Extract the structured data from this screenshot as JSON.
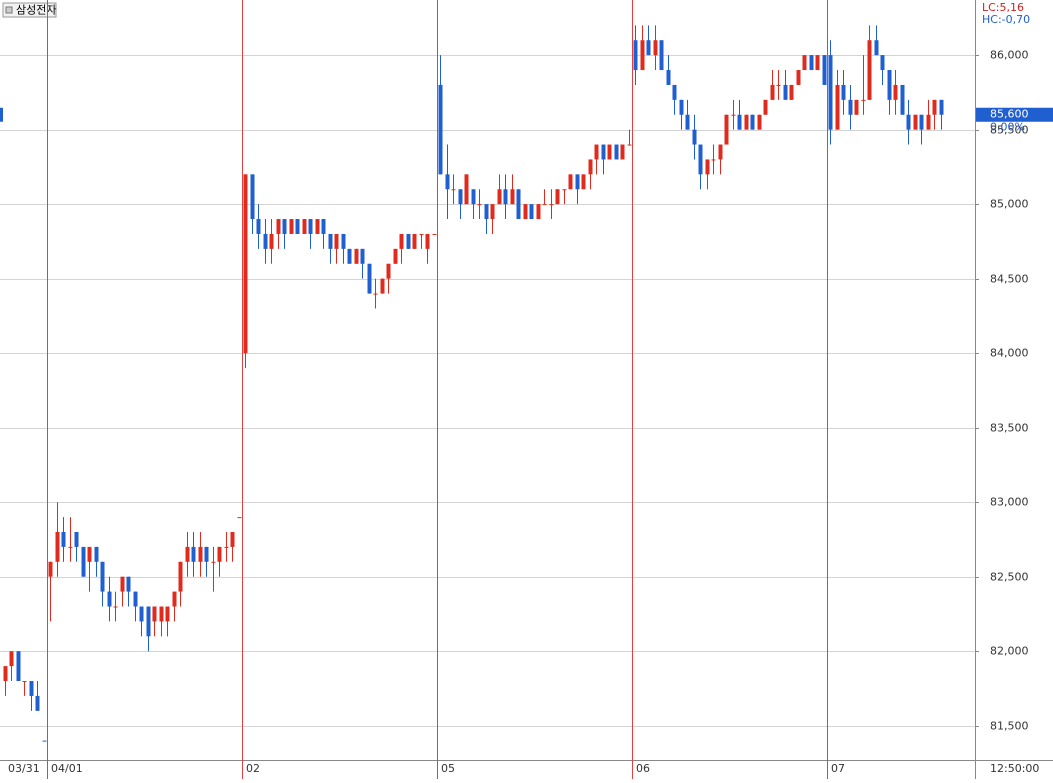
{
  "chart_data": {
    "type": "candlestick",
    "title": "삼성전자",
    "up_color": "#e02a1e",
    "down_color": "#1f5fd0",
    "separator_color": "#e04040",
    "ylim": [
      81270,
      86370
    ],
    "yticks": [
      {
        "value": 81500,
        "label": "81,500"
      },
      {
        "value": 82000,
        "label": "82,000"
      },
      {
        "value": 82500,
        "label": "82,500"
      },
      {
        "value": 83000,
        "label": "83,000"
      },
      {
        "value": 83500,
        "label": "83,500"
      },
      {
        "value": 84000,
        "label": "84,000"
      },
      {
        "value": 84500,
        "label": "84,500"
      },
      {
        "value": 85000,
        "label": "85,000"
      },
      {
        "value": 85500,
        "label": "85,500"
      },
      {
        "value": 86000,
        "label": "86,000"
      }
    ],
    "grid": true,
    "lc_label": "LC:5,16",
    "hc_label": "HC:-0,70",
    "price_label": {
      "value": 85600,
      "label": "85,600"
    },
    "change_label": "0.00%",
    "time_label": "12:50:00",
    "days": [
      {
        "label": "03/31",
        "candles": [
          [
            81800,
            81900,
            81700,
            81900
          ],
          [
            81900,
            82000,
            81800,
            82000
          ],
          [
            82000,
            82000,
            81800,
            81800
          ],
          [
            81800,
            81800,
            81700,
            81800
          ],
          [
            81800,
            81800,
            81600,
            81700
          ],
          [
            81700,
            81800,
            81600,
            81600
          ],
          [
            81400,
            81400,
            81400,
            81400
          ]
        ]
      },
      {
        "label": "04/01",
        "candles": [
          [
            82500,
            82600,
            82200,
            82600
          ],
          [
            82600,
            83000,
            82500,
            82800
          ],
          [
            82800,
            82900,
            82600,
            82700
          ],
          [
            82700,
            82900,
            82600,
            82700
          ],
          [
            82800,
            82800,
            82600,
            82700
          ],
          [
            82700,
            82700,
            82500,
            82500
          ],
          [
            82600,
            82700,
            82400,
            82700
          ],
          [
            82700,
            82700,
            82500,
            82600
          ],
          [
            82600,
            82600,
            82300,
            82400
          ],
          [
            82400,
            82500,
            82200,
            82300
          ],
          [
            82300,
            82400,
            82200,
            82300
          ],
          [
            82400,
            82500,
            82300,
            82500
          ],
          [
            82500,
            82500,
            82300,
            82400
          ],
          [
            82400,
            82400,
            82200,
            82300
          ],
          [
            82300,
            82300,
            82100,
            82200
          ],
          [
            82300,
            82300,
            82000,
            82100
          ],
          [
            82200,
            82300,
            82100,
            82300
          ],
          [
            82200,
            82300,
            82100,
            82300
          ],
          [
            82200,
            82300,
            82100,
            82300
          ],
          [
            82300,
            82400,
            82200,
            82400
          ],
          [
            82400,
            82600,
            82300,
            82600
          ],
          [
            82600,
            82800,
            82500,
            82700
          ],
          [
            82700,
            82800,
            82500,
            82600
          ],
          [
            82600,
            82800,
            82500,
            82700
          ],
          [
            82700,
            82700,
            82500,
            82600
          ],
          [
            82600,
            82700,
            82400,
            82600
          ],
          [
            82600,
            82700,
            82500,
            82700
          ],
          [
            82700,
            82800,
            82600,
            82700
          ],
          [
            82700,
            82800,
            82600,
            82800
          ],
          [
            82900,
            82900,
            82900,
            82900
          ]
        ]
      },
      {
        "label": "02",
        "candles": [
          [
            84000,
            85200,
            83900,
            85200
          ],
          [
            85200,
            85200,
            84800,
            84900
          ],
          [
            84900,
            85000,
            84700,
            84800
          ],
          [
            84800,
            84900,
            84600,
            84700
          ],
          [
            84700,
            84900,
            84600,
            84800
          ],
          [
            84800,
            84900,
            84700,
            84900
          ],
          [
            84900,
            84900,
            84700,
            84800
          ],
          [
            84800,
            84900,
            84800,
            84900
          ],
          [
            84900,
            84900,
            84800,
            84800
          ],
          [
            84800,
            84900,
            84800,
            84900
          ],
          [
            84900,
            84900,
            84700,
            84800
          ],
          [
            84800,
            84900,
            84800,
            84900
          ],
          [
            84900,
            84900,
            84700,
            84800
          ],
          [
            84800,
            84800,
            84600,
            84700
          ],
          [
            84700,
            84800,
            84600,
            84800
          ],
          [
            84800,
            84800,
            84600,
            84700
          ],
          [
            84700,
            84700,
            84600,
            84600
          ],
          [
            84600,
            84700,
            84600,
            84700
          ],
          [
            84700,
            84700,
            84500,
            84600
          ],
          [
            84600,
            84600,
            84400,
            84400
          ],
          [
            84400,
            84500,
            84300,
            84400
          ],
          [
            84400,
            84500,
            84400,
            84500
          ],
          [
            84500,
            84600,
            84400,
            84600
          ],
          [
            84600,
            84700,
            84600,
            84700
          ],
          [
            84700,
            84800,
            84600,
            84800
          ],
          [
            84800,
            84800,
            84700,
            84700
          ],
          [
            84700,
            84800,
            84700,
            84800
          ],
          [
            84800,
            84800,
            84700,
            84800
          ],
          [
            84700,
            84800,
            84600,
            84800
          ],
          [
            84800,
            84800,
            84800,
            84800
          ]
        ]
      },
      {
        "label": "05",
        "candles": [
          [
            85800,
            86000,
            85200,
            85200
          ],
          [
            85200,
            85400,
            84900,
            85100
          ],
          [
            85100,
            85200,
            85000,
            85100
          ],
          [
            85100,
            85100,
            84900,
            85000
          ],
          [
            85000,
            85200,
            85000,
            85200
          ],
          [
            85100,
            85100,
            84900,
            85000
          ],
          [
            85000,
            85100,
            84900,
            85000
          ],
          [
            85000,
            85000,
            84800,
            84900
          ],
          [
            84900,
            85000,
            84800,
            85000
          ],
          [
            85000,
            85200,
            85000,
            85100
          ],
          [
            85100,
            85200,
            84900,
            85000
          ],
          [
            85000,
            85200,
            85000,
            85100
          ],
          [
            85100,
            85100,
            84900,
            84900
          ],
          [
            84900,
            85000,
            84900,
            85000
          ],
          [
            85000,
            85000,
            84900,
            84900
          ],
          [
            84900,
            85000,
            84900,
            85000
          ],
          [
            85000,
            85100,
            85000,
            85000
          ],
          [
            85000,
            85100,
            84900,
            85000
          ],
          [
            85000,
            85100,
            85000,
            85100
          ],
          [
            85100,
            85100,
            85000,
            85100
          ],
          [
            85100,
            85200,
            85100,
            85200
          ],
          [
            85200,
            85200,
            85000,
            85100
          ],
          [
            85100,
            85200,
            85100,
            85200
          ],
          [
            85200,
            85300,
            85100,
            85300
          ],
          [
            85300,
            85400,
            85200,
            85400
          ],
          [
            85400,
            85400,
            85200,
            85300
          ],
          [
            85300,
            85400,
            85300,
            85400
          ],
          [
            85400,
            85400,
            85300,
            85300
          ],
          [
            85300,
            85400,
            85300,
            85400
          ],
          [
            85400,
            85500,
            85400,
            85400
          ]
        ]
      },
      {
        "label": "06",
        "candles": [
          [
            86100,
            86200,
            85800,
            85900
          ],
          [
            85900,
            86200,
            85900,
            86100
          ],
          [
            86100,
            86200,
            86000,
            86000
          ],
          [
            86000,
            86200,
            85900,
            86100
          ],
          [
            86100,
            86100,
            85900,
            85900
          ],
          [
            85900,
            86000,
            85800,
            85800
          ],
          [
            85800,
            85800,
            85600,
            85700
          ],
          [
            85700,
            85700,
            85500,
            85600
          ],
          [
            85600,
            85700,
            85500,
            85500
          ],
          [
            85500,
            85600,
            85300,
            85400
          ],
          [
            85400,
            85400,
            85100,
            85200
          ],
          [
            85200,
            85300,
            85100,
            85300
          ],
          [
            85300,
            85400,
            85200,
            85300
          ],
          [
            85300,
            85400,
            85200,
            85400
          ],
          [
            85400,
            85600,
            85400,
            85600
          ],
          [
            85600,
            85700,
            85500,
            85600
          ],
          [
            85600,
            85700,
            85500,
            85500
          ],
          [
            85500,
            85600,
            85500,
            85600
          ],
          [
            85600,
            85600,
            85500,
            85500
          ],
          [
            85500,
            85600,
            85500,
            85600
          ],
          [
            85600,
            85700,
            85600,
            85700
          ],
          [
            85700,
            85900,
            85700,
            85800
          ],
          [
            85800,
            85900,
            85700,
            85800
          ],
          [
            85800,
            85900,
            85700,
            85700
          ],
          [
            85700,
            85800,
            85700,
            85800
          ],
          [
            85800,
            85900,
            85800,
            85900
          ],
          [
            85900,
            86000,
            85900,
            86000
          ],
          [
            86000,
            86000,
            85900,
            85900
          ],
          [
            85900,
            86000,
            85900,
            86000
          ],
          [
            86000,
            86000,
            85800,
            85800
          ]
        ]
      },
      {
        "label": "07",
        "candles": [
          [
            86000,
            86100,
            85400,
            85500
          ],
          [
            85500,
            85900,
            85500,
            85800
          ],
          [
            85800,
            85900,
            85600,
            85700
          ],
          [
            85700,
            85800,
            85500,
            85600
          ],
          [
            85600,
            85700,
            85600,
            85700
          ],
          [
            85700,
            86000,
            85600,
            85700
          ],
          [
            85700,
            86200,
            85700,
            86100
          ],
          [
            86100,
            86200,
            86000,
            86000
          ],
          [
            86000,
            86000,
            85800,
            85900
          ],
          [
            85900,
            85900,
            85600,
            85700
          ],
          [
            85700,
            85900,
            85600,
            85800
          ],
          [
            85800,
            85800,
            85600,
            85600
          ],
          [
            85600,
            85700,
            85400,
            85500
          ],
          [
            85500,
            85600,
            85500,
            85600
          ],
          [
            85600,
            85600,
            85400,
            85500
          ],
          [
            85500,
            85700,
            85500,
            85600
          ],
          [
            85600,
            85700,
            85500,
            85700
          ],
          [
            85700,
            85700,
            85500,
            85600
          ]
        ]
      }
    ]
  }
}
